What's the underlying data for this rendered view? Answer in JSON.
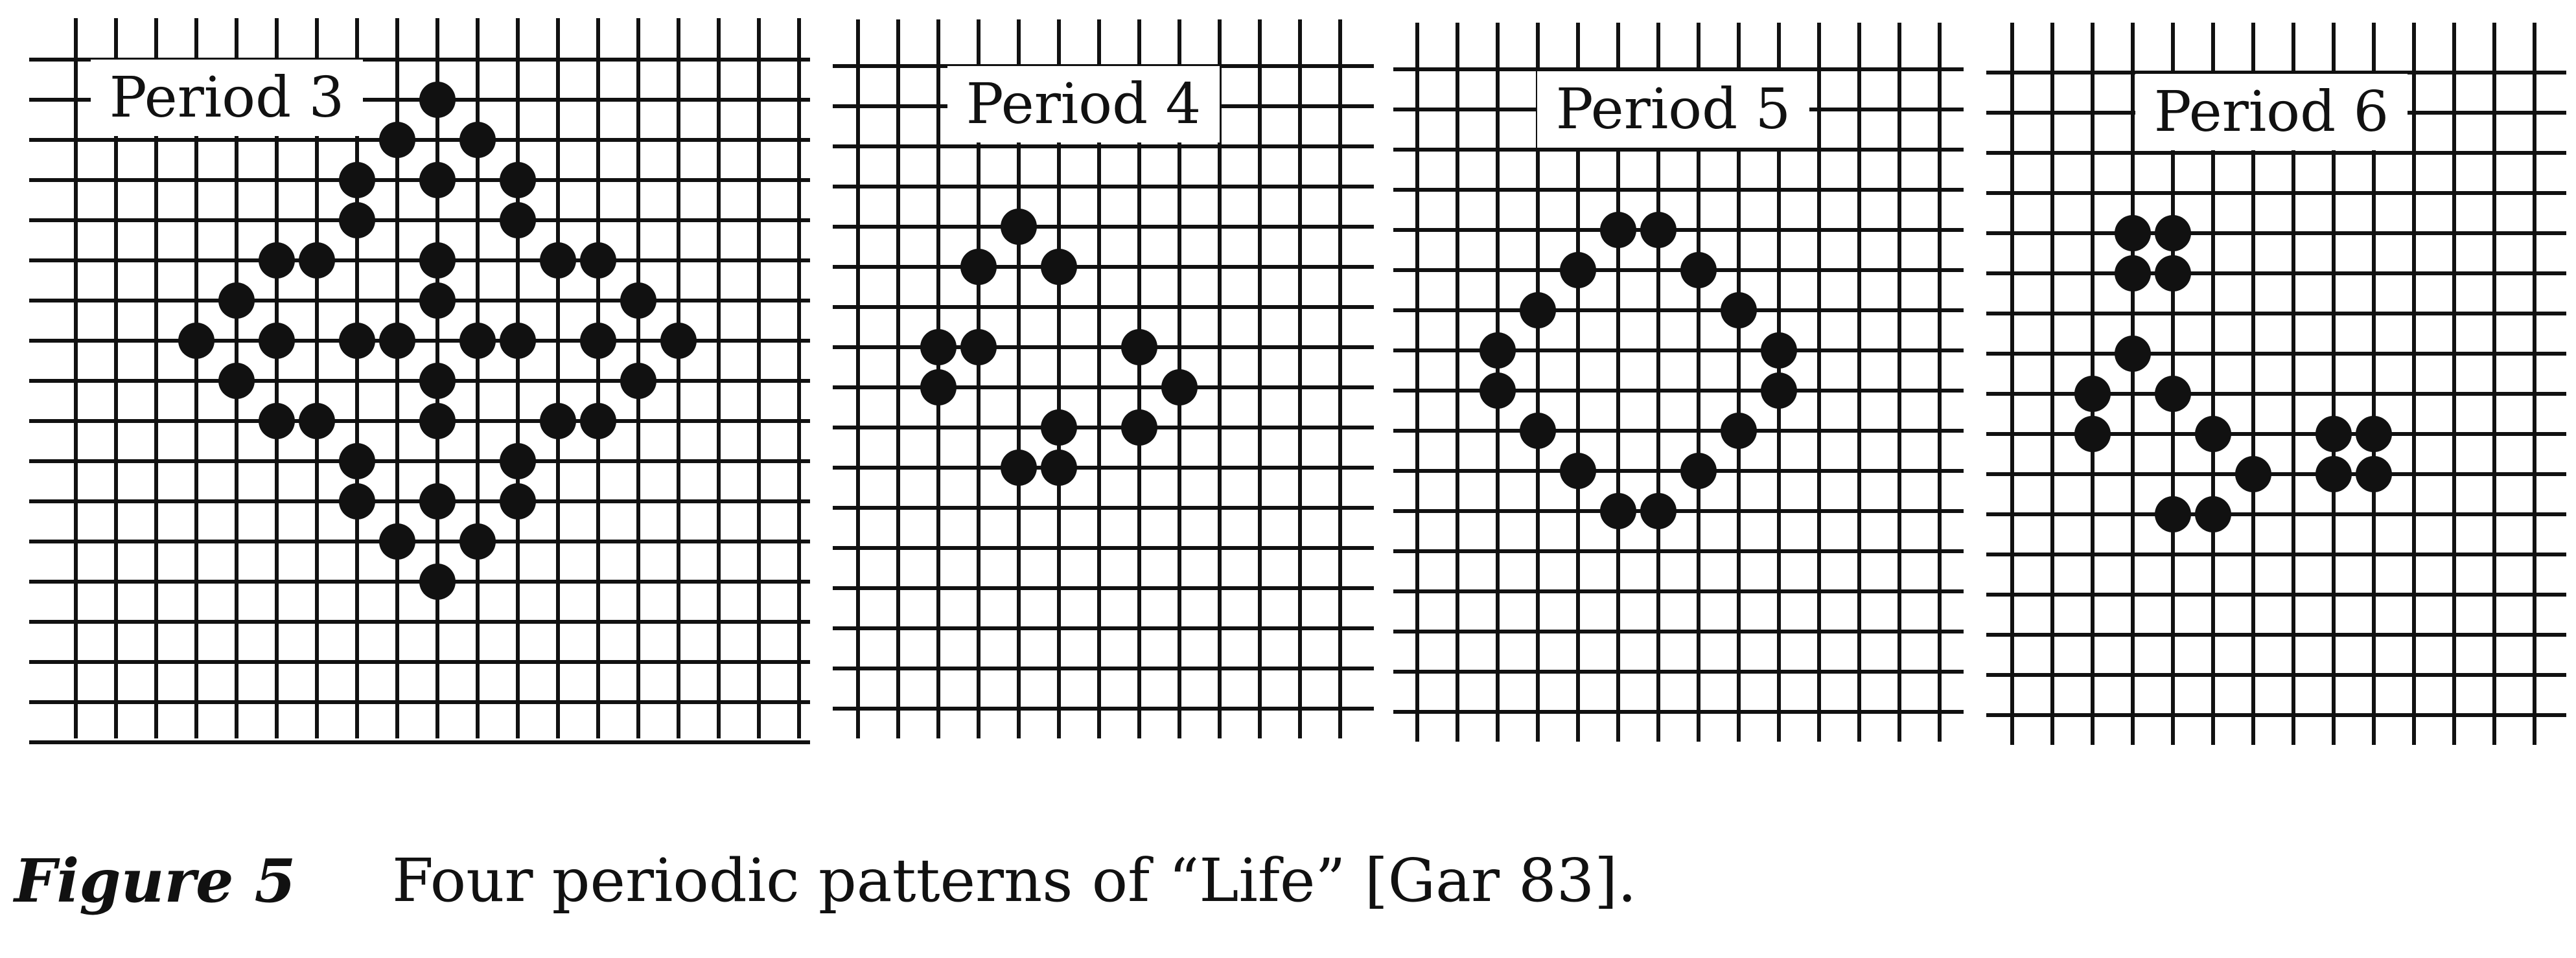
{
  "figure": {
    "label": "Figure 5",
    "caption": "Four periodic patterns of “Life” [Gar 83].",
    "line_color": "#111111",
    "dot_color": "#111111",
    "panels": [
      {
        "label": "Period 3",
        "cells": [
          [
            10,
            2
          ],
          [
            9,
            3
          ],
          [
            11,
            3
          ],
          [
            8,
            4
          ],
          [
            10,
            4
          ],
          [
            12,
            4
          ],
          [
            8,
            5
          ],
          [
            12,
            5
          ],
          [
            6,
            6
          ],
          [
            7,
            6
          ],
          [
            10,
            6
          ],
          [
            13,
            6
          ],
          [
            14,
            6
          ],
          [
            5,
            7
          ],
          [
            10,
            7
          ],
          [
            15,
            7
          ],
          [
            4,
            8
          ],
          [
            6,
            8
          ],
          [
            8,
            8
          ],
          [
            9,
            8
          ],
          [
            11,
            8
          ],
          [
            12,
            8
          ],
          [
            14,
            8
          ],
          [
            16,
            8
          ],
          [
            5,
            9
          ],
          [
            10,
            9
          ],
          [
            15,
            9
          ],
          [
            6,
            10
          ],
          [
            7,
            10
          ],
          [
            10,
            10
          ],
          [
            13,
            10
          ],
          [
            14,
            10
          ],
          [
            8,
            11
          ],
          [
            12,
            11
          ],
          [
            8,
            12
          ],
          [
            10,
            12
          ],
          [
            12,
            12
          ],
          [
            9,
            13
          ],
          [
            11,
            13
          ],
          [
            10,
            14
          ]
        ]
      },
      {
        "label": "Period 4",
        "cells": [
          [
            5,
            5
          ],
          [
            4,
            6
          ],
          [
            6,
            6
          ],
          [
            3,
            8
          ],
          [
            4,
            8
          ],
          [
            8,
            8
          ],
          [
            3,
            9
          ],
          [
            9,
            9
          ],
          [
            6,
            10
          ],
          [
            8,
            10
          ],
          [
            5,
            11
          ],
          [
            6,
            11
          ]
        ]
      },
      {
        "label": "Period 5",
        "cells": [
          [
            6,
            5
          ],
          [
            7,
            5
          ],
          [
            5,
            6
          ],
          [
            8,
            6
          ],
          [
            4,
            7
          ],
          [
            9,
            7
          ],
          [
            3,
            8
          ],
          [
            10,
            8
          ],
          [
            3,
            9
          ],
          [
            10,
            9
          ],
          [
            4,
            10
          ],
          [
            9,
            10
          ],
          [
            5,
            11
          ],
          [
            8,
            11
          ],
          [
            6,
            12
          ],
          [
            7,
            12
          ]
        ]
      },
      {
        "label": "Period 6",
        "cells": [
          [
            4,
            5
          ],
          [
            5,
            5
          ],
          [
            4,
            6
          ],
          [
            5,
            6
          ],
          [
            4,
            8
          ],
          [
            3,
            9
          ],
          [
            5,
            9
          ],
          [
            3,
            10
          ],
          [
            6,
            10
          ],
          [
            7,
            11
          ],
          [
            5,
            12
          ],
          [
            6,
            12
          ],
          [
            9,
            10
          ],
          [
            10,
            10
          ],
          [
            9,
            11
          ],
          [
            10,
            11
          ]
        ]
      }
    ]
  }
}
